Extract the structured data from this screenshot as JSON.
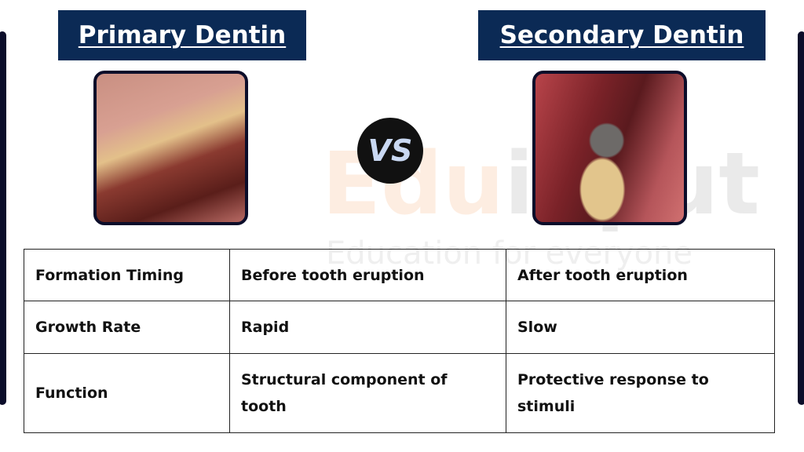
{
  "watermark": {
    "brand": "Eduinput",
    "tagline": "Education for everyone"
  },
  "left": {
    "title": "Primary Dentin"
  },
  "right": {
    "title": "Secondary Dentin"
  },
  "vs": "VS",
  "table": {
    "rows": [
      {
        "label": "Formation Timing",
        "primary": "Before tooth eruption",
        "secondary": "After tooth eruption"
      },
      {
        "label": "Growth Rate",
        "primary": "Rapid",
        "secondary": "Slow"
      },
      {
        "label": "Function",
        "primary": "Structural component of tooth",
        "secondary": "Protective response to stimuli"
      }
    ]
  },
  "colors": {
    "title_bg": "#0b2a55",
    "border": "#0b0d2a"
  }
}
